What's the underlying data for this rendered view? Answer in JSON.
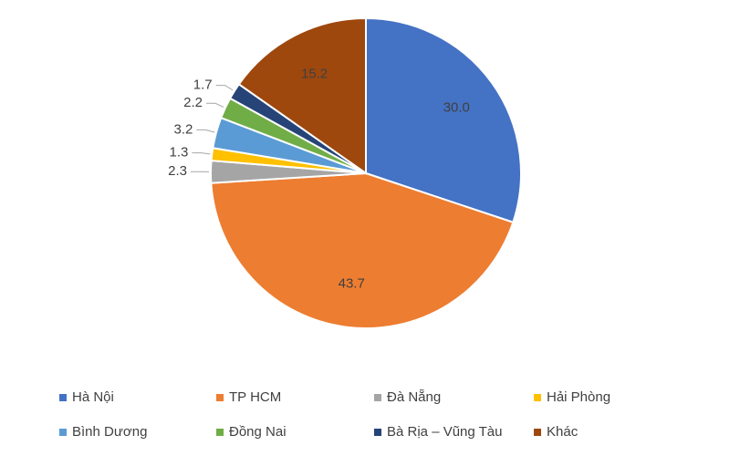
{
  "chart_data": {
    "type": "pie",
    "categories": [
      "Hà Nội",
      "TP HCM",
      "Đà Nẵng",
      "Hải Phòng",
      "Bình Dương",
      "Đồng Nai",
      "Bà Rịa – Vũng Tàu",
      "Khác"
    ],
    "values": [
      30.0,
      43.7,
      2.3,
      1.3,
      3.2,
      2.2,
      1.7,
      15.2
    ],
    "value_labels": [
      "30.0",
      "43.7",
      "2.3",
      "1.3",
      "3.2",
      "2.2",
      "1.7",
      "15.2"
    ],
    "colors": [
      "#4472c4",
      "#ed7d31",
      "#a5a5a5",
      "#ffc000",
      "#5b9bd5",
      "#70ad47",
      "#264478",
      "#9e480e"
    ],
    "legend": "bottom"
  }
}
